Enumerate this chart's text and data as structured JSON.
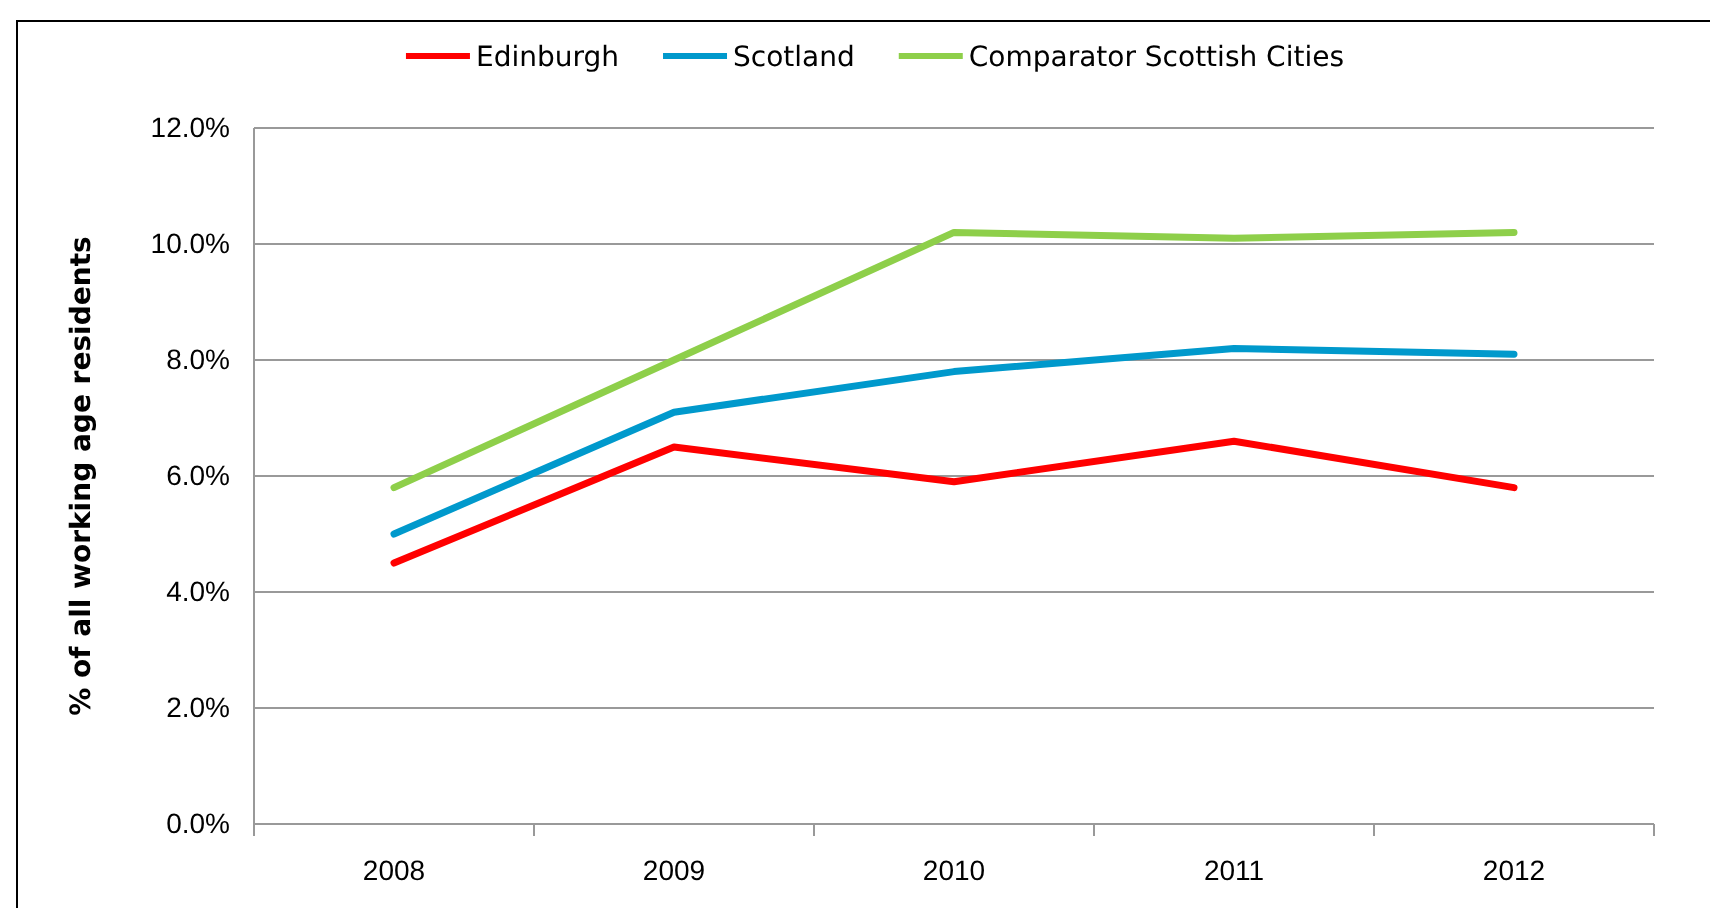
{
  "chart_data": {
    "type": "line",
    "ylabel": "% of all working age residents",
    "categories": [
      "2008",
      "2009",
      "2010",
      "2011",
      "2012"
    ],
    "series": [
      {
        "name": "Edinburgh",
        "color": "#ff0000",
        "values": [
          4.5,
          6.5,
          5.9,
          6.6,
          5.8
        ]
      },
      {
        "name": "Scotland",
        "color": "#0099cc",
        "values": [
          5.0,
          7.1,
          7.8,
          8.2,
          8.1
        ]
      },
      {
        "name": "Comparator Scottish Cities",
        "color": "#8ecf4a",
        "values": [
          5.8,
          8.0,
          10.2,
          10.1,
          10.2
        ]
      }
    ],
    "ylim": [
      0,
      12
    ],
    "yticks": [
      {
        "value": 0,
        "label": "0.0%"
      },
      {
        "value": 2,
        "label": "2.0%"
      },
      {
        "value": 4,
        "label": "4.0%"
      },
      {
        "value": 6,
        "label": "6.0%"
      },
      {
        "value": 8,
        "label": "8.0%"
      },
      {
        "value": 10,
        "label": "10.0%"
      },
      {
        "value": 12,
        "label": "12.0%"
      }
    ],
    "grid": "y",
    "legend": "top",
    "marker": "none",
    "line_style": "solid"
  }
}
